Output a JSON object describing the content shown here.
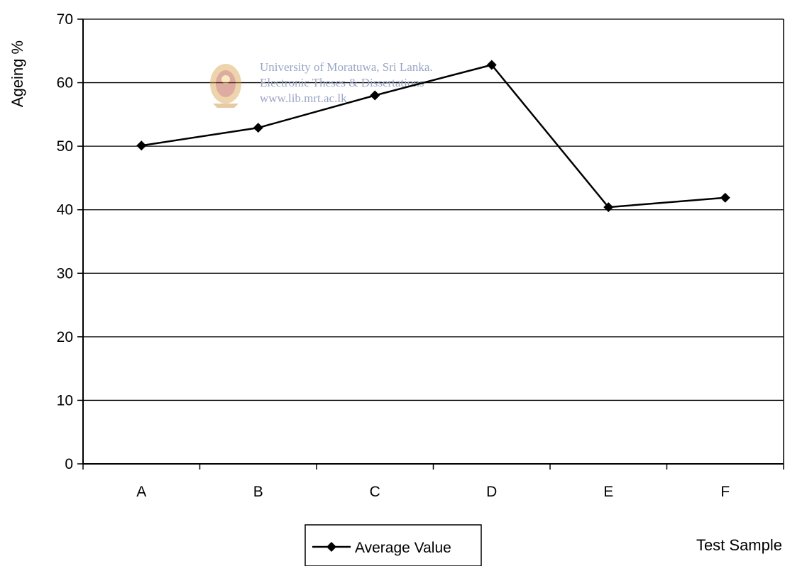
{
  "chart_data": {
    "type": "line",
    "title": "",
    "xlabel": "Test Sample",
    "ylabel": "Ageing %",
    "categories": [
      "A",
      "B",
      "C",
      "D",
      "E",
      "F"
    ],
    "series": [
      {
        "name": "Average Value",
        "values": [
          50.1,
          52.9,
          58.0,
          62.8,
          40.4,
          41.9
        ],
        "color": "#000000"
      }
    ],
    "ylim": [
      0,
      70
    ],
    "yticks": [
      0,
      10,
      20,
      30,
      40,
      50,
      60,
      70
    ],
    "grid": true,
    "legend_position": "bottom-center"
  },
  "watermark": {
    "line1": "University of Moratuwa, Sri Lanka.",
    "line2": "Electronic Theses & Dissertations",
    "line3": "www.lib.mrt.ac.lk"
  }
}
